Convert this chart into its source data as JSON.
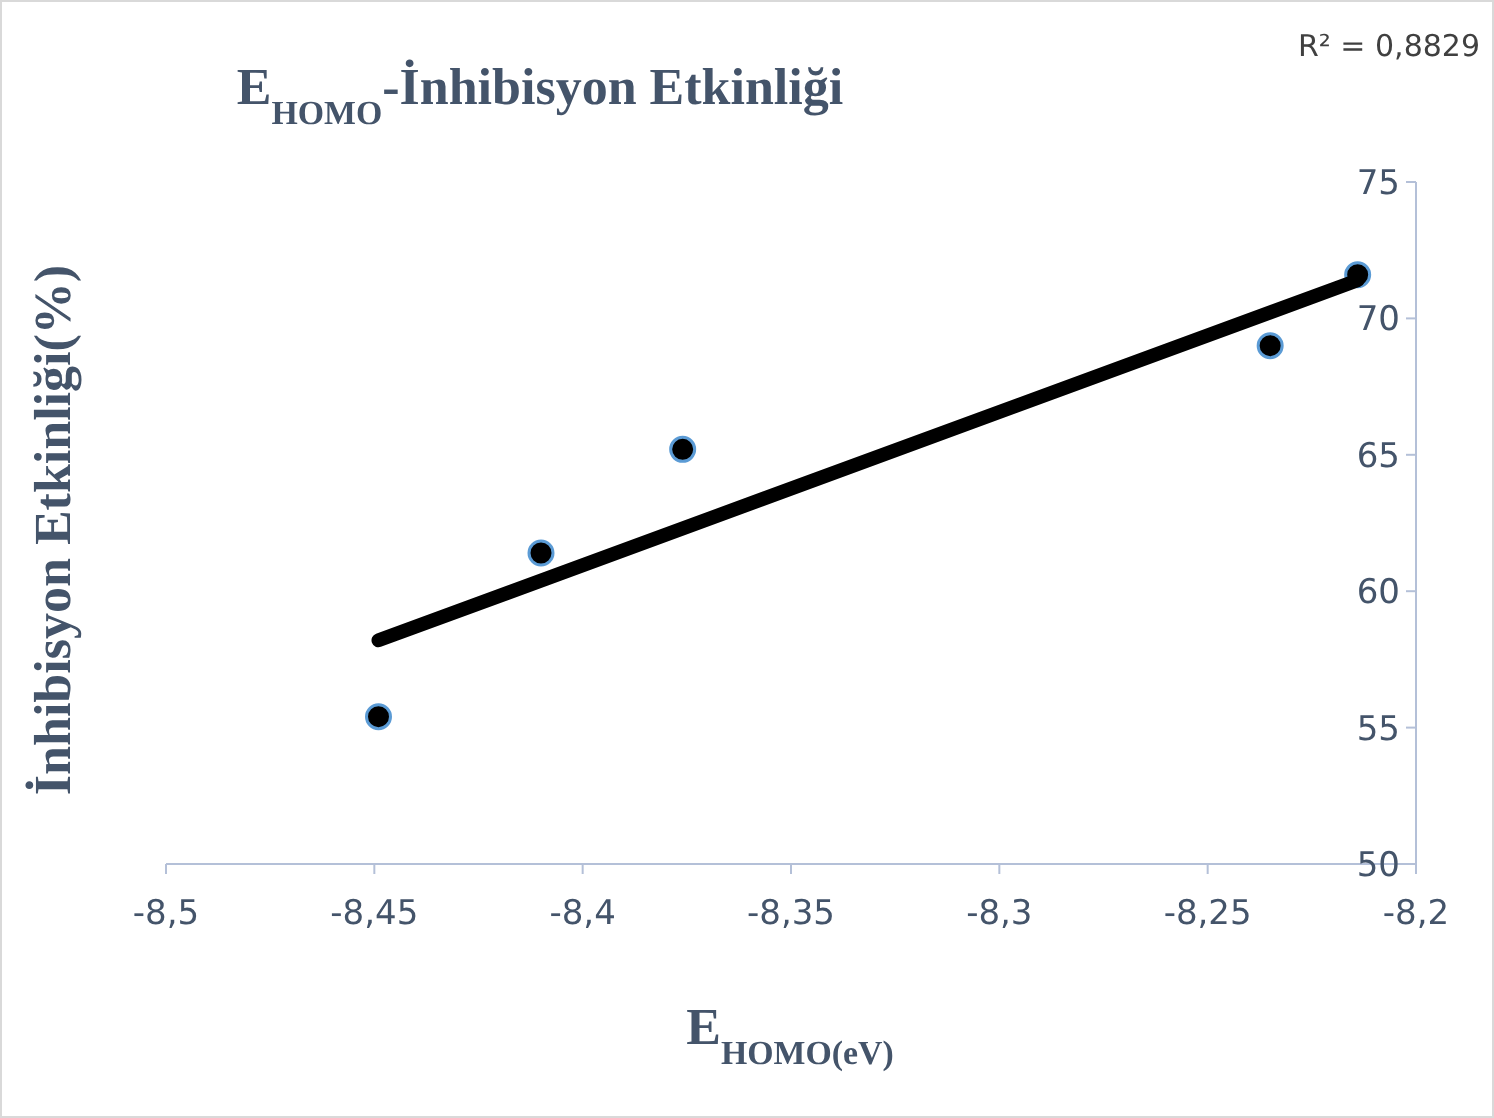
{
  "chart_data": {
    "type": "scatter",
    "title": "E$_{HOMO}$-İnhibisyon Etkinliği",
    "xlabel": "E$_{HOMO(eV)}$",
    "ylabel": "İnhibisyon Etkinliği(%)",
    "annotations": [
      "R² = 0,8829"
    ],
    "x": [
      -8.449,
      -8.41,
      -8.376,
      -8.235,
      -8.214
    ],
    "series": [
      {
        "color": "#000000",
        "values": [
          55.4,
          61.4,
          65.2,
          69.0,
          71.6
        ]
      },
      {
        "type": "line",
        "color": "#000000",
        "x": [
          -8.449,
          -8.214
        ],
        "values": [
          58.2,
          71.4
        ],
        "marker": "none"
      }
    ],
    "xlim": [
      -8.5,
      -8.2
    ],
    "xticks": [
      {
        "value": -8.5,
        "label": "-8,5"
      },
      {
        "value": -8.45,
        "label": "-8,45"
      },
      {
        "value": -8.4,
        "label": "-8,4"
      },
      {
        "value": -8.35,
        "label": "-8,35"
      },
      {
        "value": -8.3,
        "label": "-8,3"
      },
      {
        "value": -8.25,
        "label": "-8,25"
      },
      {
        "value": -8.2,
        "label": "-8,2"
      }
    ],
    "ylim": [
      50,
      75
    ],
    "yticks": [
      50,
      55,
      60,
      65,
      70,
      75
    ],
    "grid": false,
    "marker": "circle"
  }
}
